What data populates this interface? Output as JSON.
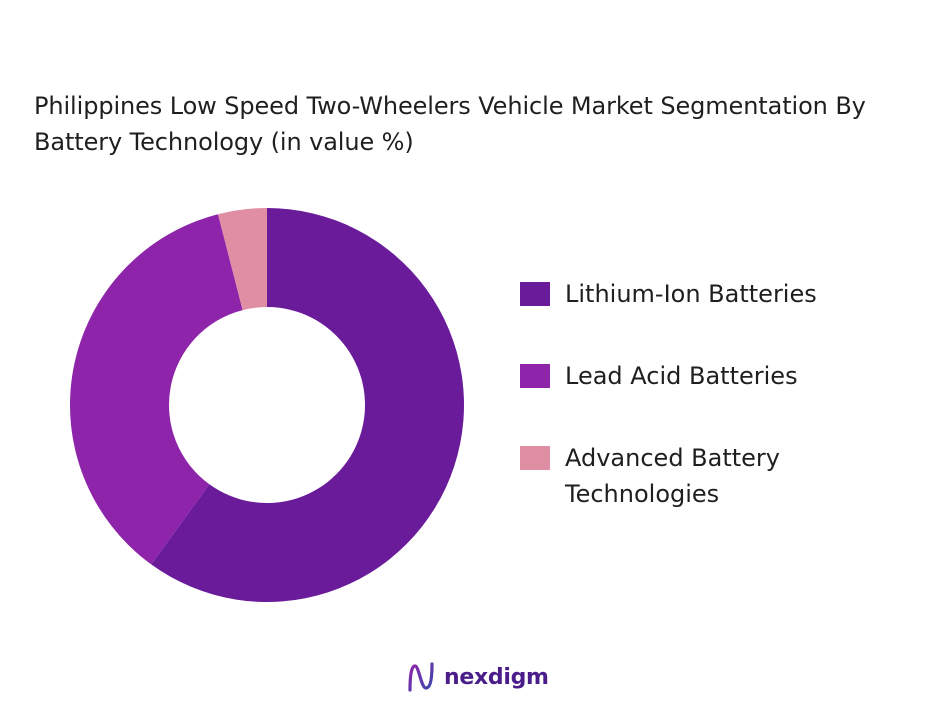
{
  "chart_data": {
    "type": "pie",
    "title": "Philippines Low Speed Two-Wheelers Vehicle Market Segmentation By Battery Technology (in value %)",
    "categories": [
      "Lithium-Ion Batteries",
      "Lead Acid Batteries",
      "Advanced Battery Technologies"
    ],
    "values": [
      60,
      36,
      4
    ],
    "colors": [
      "#6a1b9a",
      "#8e24aa",
      "#e08ea3"
    ],
    "legend_position": "right",
    "donut": true
  },
  "brand": {
    "name": "nexdigm",
    "color": "#4a1d8a"
  }
}
